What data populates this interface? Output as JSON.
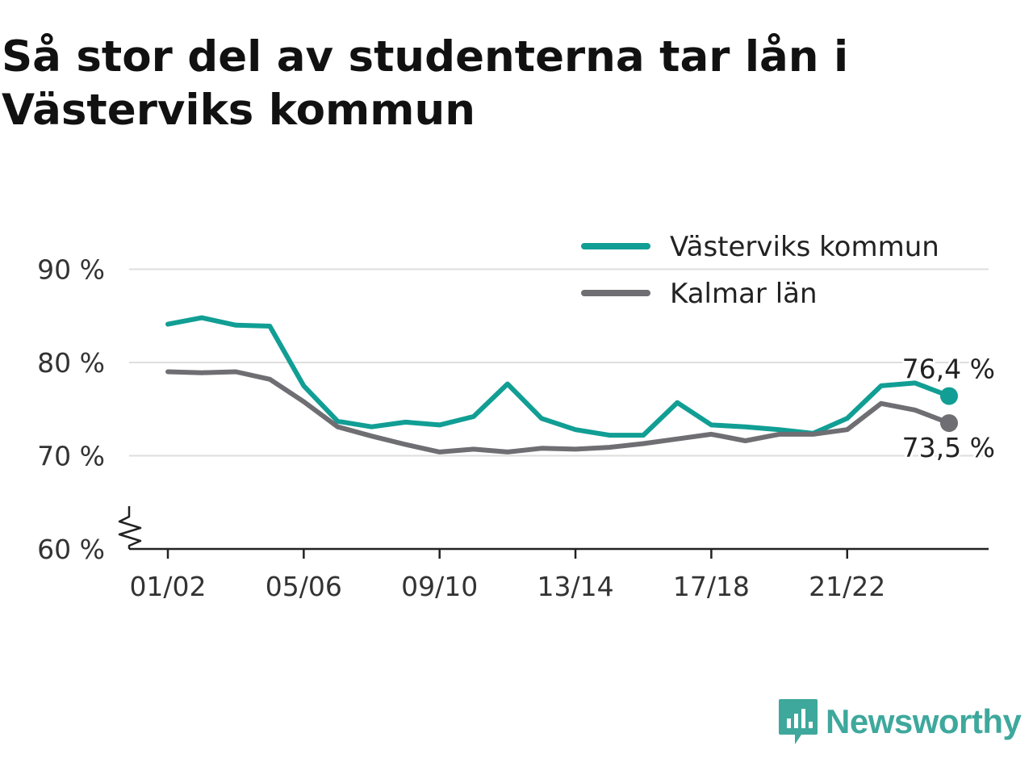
{
  "title": "Så stor del av studenterna tar lån i Västerviks kommun",
  "brand": {
    "name": "Newsworthy",
    "icon": "newsworthy-logo-icon",
    "color": "#3ea89c"
  },
  "chart_data": {
    "type": "line",
    "title": "Så stor del av studenterna tar lån i Västerviks kommun",
    "xlabel": "",
    "ylabel": "",
    "x": [
      "01/02",
      "02/03",
      "03/04",
      "04/05",
      "05/06",
      "06/07",
      "07/08",
      "08/09",
      "09/10",
      "10/11",
      "11/12",
      "12/13",
      "13/14",
      "14/15",
      "15/16",
      "16/17",
      "17/18",
      "18/19",
      "19/20",
      "20/21",
      "21/22",
      "22/23",
      "23/24",
      "24/25"
    ],
    "x_tick_labels": [
      "01/02",
      "05/06",
      "09/10",
      "13/14",
      "17/18",
      "21/22"
    ],
    "y_ticks": [
      60,
      70,
      80,
      90
    ],
    "y_tick_labels": [
      "60 %",
      "70 %",
      "80 %",
      "90 %"
    ],
    "ylim": [
      60,
      90
    ],
    "y_axis_broken": true,
    "grid": true,
    "legend_position": "top-right",
    "series": [
      {
        "name": "Västerviks kommun",
        "color": "#119e94",
        "values": [
          84.1,
          84.8,
          84.0,
          83.9,
          77.5,
          73.7,
          73.1,
          73.6,
          73.3,
          74.2,
          77.7,
          74.0,
          72.8,
          72.2,
          72.2,
          75.7,
          73.3,
          73.1,
          72.8,
          72.4,
          74.0,
          77.5,
          77.8,
          76.4
        ],
        "end_label": "76,4 %"
      },
      {
        "name": "Kalmar län",
        "color": "#6f6e73",
        "values": [
          79.0,
          78.9,
          79.0,
          78.2,
          75.8,
          73.1,
          72.1,
          71.2,
          70.4,
          70.7,
          70.4,
          70.8,
          70.7,
          70.9,
          71.3,
          71.8,
          72.3,
          71.6,
          72.3,
          72.3,
          72.8,
          75.6,
          74.9,
          73.5
        ],
        "end_label": "73,5 %"
      }
    ]
  }
}
